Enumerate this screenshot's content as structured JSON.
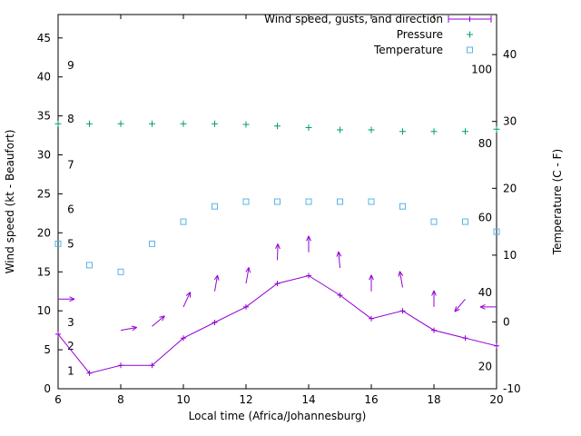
{
  "chart_data": {
    "type": "line",
    "x": [
      6,
      7,
      8,
      9,
      10,
      11,
      12,
      13,
      14,
      15,
      16,
      17,
      18,
      19,
      20
    ],
    "x_axis": {
      "label": "Local time (Africa/Johannesburg)",
      "range": [
        6,
        20
      ],
      "ticks": [
        6,
        8,
        10,
        12,
        14,
        16,
        18,
        20
      ]
    },
    "y_axis_left": {
      "label": "Wind speed (kt - Beaufort)",
      "range": [
        0,
        48
      ],
      "ticks": [
        0,
        5,
        10,
        15,
        20,
        25,
        30,
        35,
        40,
        45
      ],
      "beaufort_labels": [
        {
          "text": "1",
          "kt": 2.3
        },
        {
          "text": "2",
          "kt": 5.5
        },
        {
          "text": "3",
          "kt": 8.5
        },
        {
          "text": "5",
          "kt": 18.6
        },
        {
          "text": "6",
          "kt": 23
        },
        {
          "text": "7",
          "kt": 28.7
        },
        {
          "text": "8",
          "kt": 34.6
        },
        {
          "text": "9",
          "kt": 41.5
        }
      ]
    },
    "y_axis_right": {
      "label": "Temperature (C - F)",
      "range": [
        -10,
        46
      ],
      "ticks": [
        -10,
        0,
        10,
        20,
        30,
        40
      ],
      "fahrenheit_labels": [
        {
          "text": "20",
          "c": -6.7
        },
        {
          "text": "40",
          "c": 4.4
        },
        {
          "text": "60",
          "c": 15.6
        },
        {
          "text": "80",
          "c": 26.7
        },
        {
          "text": "100",
          "c": 37.8
        }
      ]
    },
    "series": [
      {
        "name": "Wind speed",
        "color": "#9400d3",
        "axis": "left",
        "style": "line-plus",
        "values": [
          7,
          2,
          3,
          3,
          6.5,
          8.5,
          10.5,
          13.5,
          14.5,
          12,
          9,
          10,
          7.5,
          6.5,
          5.5
        ]
      },
      {
        "name": "Gusts and direction",
        "color": "#9400d3",
        "axis": "left",
        "style": "arrow",
        "values": [
          11.5,
          null,
          7.5,
          8,
          10.5,
          12.5,
          13.5,
          16.5,
          17.5,
          15.5,
          12.5,
          13,
          10.5,
          11.5,
          10.5
        ],
        "directions_deg": [
          0,
          null,
          10,
          40,
          65,
          80,
          80,
          88,
          90,
          95,
          90,
          100,
          90,
          230,
          180
        ]
      },
      {
        "name": "Pressure",
        "color": "#009e73",
        "axis": "left",
        "style": "plus",
        "values": [
          34,
          34,
          34,
          34,
          34,
          34,
          33.9,
          33.7,
          33.5,
          33.2,
          33.2,
          33,
          33,
          33,
          33.3
        ]
      },
      {
        "name": "Temperature",
        "color": "#56b4e9",
        "axis": "right",
        "style": "square",
        "values": [
          11.7,
          8.5,
          7.5,
          11.7,
          15,
          17.3,
          18,
          18,
          18,
          18,
          18,
          17.3,
          15,
          15,
          13.5
        ]
      }
    ],
    "legend": [
      {
        "label": "Wind speed, gusts, and direction",
        "color": "#9400d3",
        "sample": "errorbar"
      },
      {
        "label": "Pressure",
        "color": "#009e73",
        "sample": "plus"
      },
      {
        "label": "Temperature",
        "color": "#56b4e9",
        "sample": "square"
      }
    ],
    "background": "#ffffff",
    "text_color": "#000000"
  }
}
